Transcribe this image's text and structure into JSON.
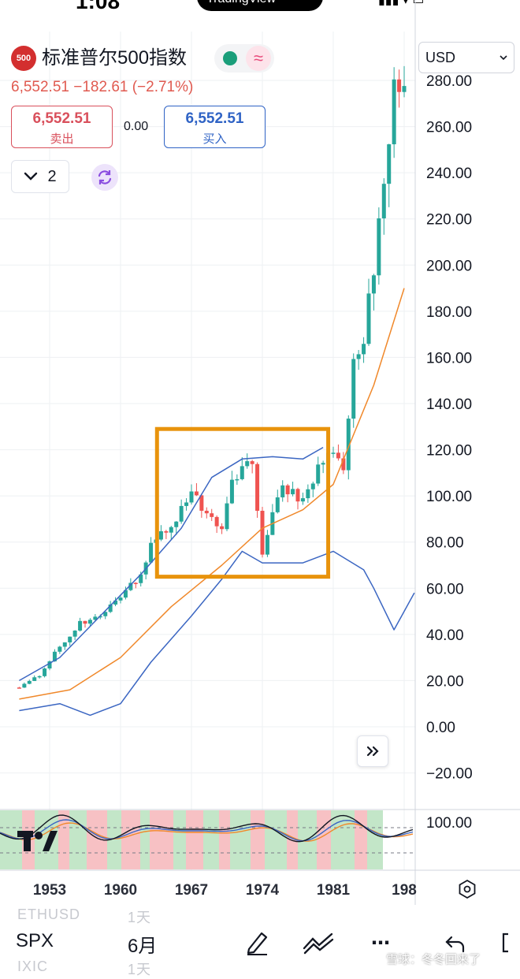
{
  "status_bar": {
    "time": "1:08",
    "pill_text": "TradingView"
  },
  "header": {
    "symbol_badge": "500",
    "symbol_name": "标准普尔500指数",
    "market_open_color": "#1a9e7a",
    "wave_icon": "≈",
    "price_line": "6,552.51  −182.61 (−2.71%)",
    "sell": {
      "price": "6,552.51",
      "label": "卖出"
    },
    "spread": "0.00",
    "buy": {
      "price": "6,552.51",
      "label": "买入"
    },
    "indicator_count": "2",
    "currency": "USD"
  },
  "chart_data": {
    "type": "line",
    "interval": "6月",
    "x_tick_labels": [
      "1953",
      "1960",
      "1967",
      "1974",
      "1981",
      "198"
    ],
    "y_tick_labels": [
      "280.00",
      "260.00",
      "240.00",
      "220.00",
      "200.00",
      "180.00",
      "160.00",
      "140.00",
      "120.00",
      "100.00",
      "80.00",
      "60.00",
      "40.00",
      "20.00",
      "0.00",
      "−20.00"
    ],
    "ylim": [
      -20,
      280
    ],
    "oscillator_tick_label": "100.00",
    "series": [
      {
        "name": "",
        "color": "#f0882a",
        "points": [
          [
            1950,
            12
          ],
          [
            1955,
            16
          ],
          [
            1960,
            30
          ],
          [
            1965,
            52
          ],
          [
            1970,
            70
          ],
          [
            1974,
            86
          ],
          [
            1978,
            94
          ],
          [
            1981,
            105
          ],
          [
            1985,
            148
          ],
          [
            1988,
            190
          ]
        ]
      },
      {
        "name": "",
        "color": "#3b66c2",
        "points": [
          [
            1950,
            20
          ],
          [
            1954,
            30
          ],
          [
            1958,
            48
          ],
          [
            1962,
            66
          ],
          [
            1966,
            86
          ],
          [
            1969,
            108
          ],
          [
            1972,
            116
          ],
          [
            1975,
            117
          ],
          [
            1978,
            116
          ],
          [
            1980,
            121
          ]
        ]
      },
      {
        "name": "",
        "color": "#3b66c2",
        "points": [
          [
            1950,
            7
          ],
          [
            1954,
            10
          ],
          [
            1957,
            5
          ],
          [
            1960,
            10
          ],
          [
            1963,
            28
          ],
          [
            1967,
            48
          ],
          [
            1970,
            64
          ],
          [
            1972,
            76
          ],
          [
            1974,
            71
          ],
          [
            1978,
            71
          ],
          [
            1981,
            76
          ],
          [
            1984,
            68
          ],
          [
            1985,
            60
          ],
          [
            1987,
            42
          ],
          [
            1989,
            58
          ]
        ]
      }
    ],
    "candles_approx": [
      [
        1950,
        17
      ],
      [
        1952,
        22
      ],
      [
        1954,
        35
      ],
      [
        1956,
        45
      ],
      [
        1958,
        48
      ],
      [
        1960,
        56
      ],
      [
        1962,
        66
      ],
      [
        1963,
        78
      ],
      [
        1965,
        88
      ],
      [
        1967,
        100
      ],
      [
        1968,
        95
      ],
      [
        1970,
        86
      ],
      [
        1971,
        104
      ],
      [
        1973,
        116
      ],
      [
        1974,
        74
      ],
      [
        1975,
        90
      ],
      [
        1976,
        104
      ],
      [
        1978,
        98
      ],
      [
        1980,
        116
      ],
      [
        1981,
        118
      ],
      [
        1982,
        110
      ],
      [
        1983,
        160
      ],
      [
        1984,
        166
      ],
      [
        1985,
        200
      ],
      [
        1986,
        238
      ],
      [
        1987,
        280
      ],
      [
        1988,
        272
      ]
    ]
  },
  "annotation": {
    "color": "#e8930c"
  },
  "bottom_bar": {
    "faded_top": {
      "symbol": "ETHUSD",
      "interval": "1天"
    },
    "symbol": "SPX",
    "interval": "6月",
    "faded_bottom": {
      "symbol": "IXIC",
      "interval": "1天"
    },
    "more_label": "⋯"
  },
  "watermark": "雪球：冬冬回来了"
}
